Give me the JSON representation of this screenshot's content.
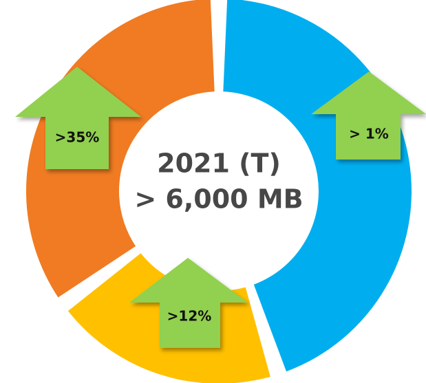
{
  "chart_data": {
    "type": "donut",
    "title": "2021 (T)",
    "subtitle": "> 6,000 MB",
    "values": [
      45,
      20,
      35
    ],
    "colors": [
      "#00aeef",
      "#ffc000",
      "#f07b22"
    ],
    "annotations": [
      "> 1%",
      ">12%",
      ">35%"
    ]
  }
}
